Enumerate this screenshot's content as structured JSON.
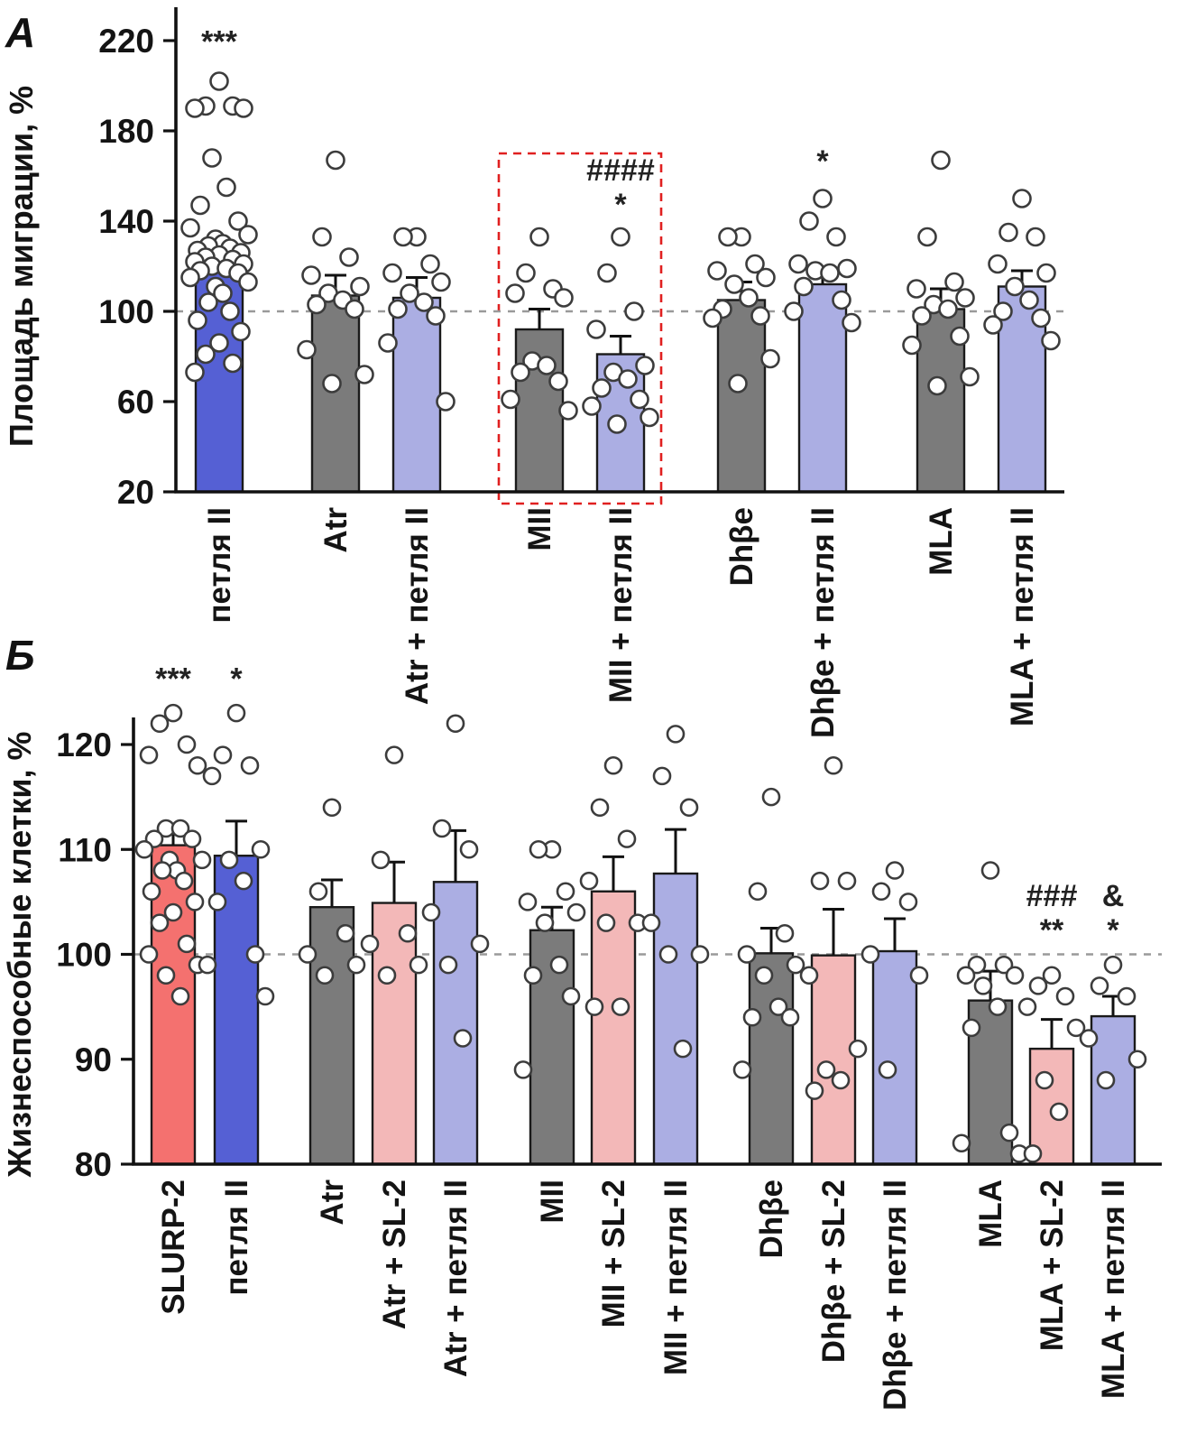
{
  "figure": {
    "background": "#ffffff",
    "reference_line_color": "#9a9a9a",
    "point_fill": "#ffffff",
    "point_stroke": "#3c3c3c",
    "bar_outline": "#1a1a1a"
  },
  "chart_data": [
    {
      "type": "bar",
      "panel_label": "А",
      "ylabel": "Площадь миграции, %",
      "ylim": [
        20,
        228
      ],
      "yticks": [
        20,
        60,
        100,
        140,
        180,
        220
      ],
      "reference_line": 100,
      "grid": false,
      "categories": [
        "петля II",
        "Atr",
        "Atr + петля II",
        "MII",
        "MII + петля II",
        "Dhβe",
        "Dhβe + петля II",
        "MLA",
        "MLA + петля II"
      ],
      "values": [
        123,
        107,
        106,
        92,
        81,
        105,
        112,
        101,
        111
      ],
      "errors": [
        7,
        9,
        9,
        9,
        8,
        8,
        7,
        9,
        7
      ],
      "bar_colors": [
        "#5560d4",
        "#7b7b7b",
        "#abaee3",
        "#7b7b7b",
        "#abaee3",
        "#7b7b7b",
        "#abaee3",
        "#7b7b7b",
        "#abaee3"
      ],
      "points": [
        [
          202,
          191,
          191,
          190,
          190,
          168,
          155,
          147,
          140,
          137,
          134,
          132,
          130,
          129,
          128,
          127,
          126,
          125,
          124,
          123,
          122,
          121,
          120,
          119,
          118,
          117,
          115,
          113,
          111,
          108,
          104,
          100,
          96,
          91,
          86,
          81,
          77,
          73
        ],
        [
          167,
          133,
          124,
          116,
          111,
          108,
          105,
          103,
          101,
          83,
          72,
          68
        ],
        [
          133,
          133,
          121,
          117,
          113,
          108,
          104,
          101,
          98,
          86,
          60
        ],
        [
          133,
          117,
          110,
          108,
          106,
          78,
          76,
          73,
          69,
          61,
          56
        ],
        [
          133,
          117,
          100,
          92,
          76,
          73,
          70,
          66,
          61,
          58,
          53,
          50
        ],
        [
          133,
          133,
          121,
          118,
          115,
          112,
          106,
          101,
          98,
          97,
          79,
          68
        ],
        [
          150,
          140,
          133,
          121,
          119,
          118,
          117,
          111,
          105,
          100,
          95
        ],
        [
          167,
          133,
          113,
          110,
          106,
          103,
          101,
          98,
          89,
          85,
          71,
          67
        ],
        [
          150,
          135,
          133,
          121,
          117,
          111,
          105,
          100,
          97,
          94,
          87
        ]
      ],
      "annotations": [
        {
          "category_index": 0,
          "lines": [
            "***"
          ],
          "y": 215
        },
        {
          "category_index": 4,
          "lines": [
            "####",
            "*"
          ],
          "y": 158
        },
        {
          "category_index": 6,
          "lines": [
            "*"
          ],
          "y": 162
        }
      ],
      "highlight_box": {
        "from_index": 3,
        "to_index": 4,
        "top_y": 170,
        "color": "#e02020"
      }
    },
    {
      "type": "bar",
      "panel_label": "Б",
      "ylabel": "Жизнеспособные клетки, %",
      "ylim": [
        80,
        126
      ],
      "yticks": [
        80,
        90,
        100,
        110,
        120
      ],
      "reference_line": 100,
      "grid": false,
      "categories": [
        "SLURP-2",
        "петля II",
        "Atr",
        "Atr + SL-2",
        "Atr + петля II",
        "MII",
        "MII + SL-2",
        "MII + петля II",
        "Dhβe",
        "Dhβe + SL-2",
        "Dhβe + петля II",
        "MLA",
        "MLA + SL-2",
        "MLA + петля II"
      ],
      "values": [
        110.4,
        109.4,
        104.5,
        104.9,
        106.9,
        102.3,
        106.0,
        107.7,
        100.1,
        99.9,
        100.3,
        95.6,
        91.0,
        94.1
      ],
      "errors": [
        1.3,
        3.3,
        2.6,
        3.9,
        4.9,
        2.2,
        3.3,
        4.2,
        2.4,
        4.4,
        3.1,
        2.8,
        2.8,
        1.9
      ],
      "bar_colors": [
        "#f4716f",
        "#5560d4",
        "#7b7b7b",
        "#f3b8b8",
        "#abaee3",
        "#7b7b7b",
        "#f3b8b8",
        "#abaee3",
        "#7b7b7b",
        "#f3b8b8",
        "#abaee3",
        "#7b7b7b",
        "#f3b8b8",
        "#abaee3"
      ],
      "points": [
        [
          123,
          122,
          120,
          119,
          118,
          112,
          112,
          111,
          111,
          110,
          109,
          109,
          108,
          108,
          107,
          106,
          105,
          104,
          103,
          101,
          100,
          99,
          98,
          96
        ],
        [
          123,
          119,
          118,
          117,
          110,
          109,
          107,
          105,
          100,
          99,
          96
        ],
        [
          114,
          106,
          102,
          100,
          99,
          98
        ],
        [
          119,
          109,
          102,
          101,
          99,
          98
        ],
        [
          122,
          112,
          110,
          104,
          101,
          99,
          92
        ],
        [
          110,
          110,
          106,
          105,
          104,
          103,
          99,
          98,
          96,
          89
        ],
        [
          118,
          114,
          111,
          107,
          103,
          103,
          95,
          95
        ],
        [
          121,
          117,
          114,
          103,
          100,
          100,
          91
        ],
        [
          115,
          106,
          102,
          100,
          99,
          98,
          95,
          94,
          94,
          89
        ],
        [
          118,
          107,
          107,
          98,
          91,
          89,
          88,
          87
        ],
        [
          108,
          106,
          105,
          100,
          98,
          89
        ],
        [
          108,
          99,
          99,
          98,
          98,
          97,
          95,
          93,
          83,
          82,
          81
        ],
        [
          98,
          97,
          96,
          95,
          93,
          88,
          85,
          81
        ],
        [
          99,
          97,
          96,
          92,
          90,
          88
        ]
      ],
      "annotations": [
        {
          "category_index": 0,
          "lines": [
            "***"
          ],
          "y": 125.3
        },
        {
          "category_index": 1,
          "lines": [
            "*"
          ],
          "y": 125.3
        },
        {
          "category_index": 12,
          "lines": [
            "###",
            "**"
          ],
          "y": 104.6
        },
        {
          "category_index": 13,
          "lines": [
            "&",
            "*"
          ],
          "y": 104.6
        }
      ],
      "highlight_box": null
    }
  ]
}
